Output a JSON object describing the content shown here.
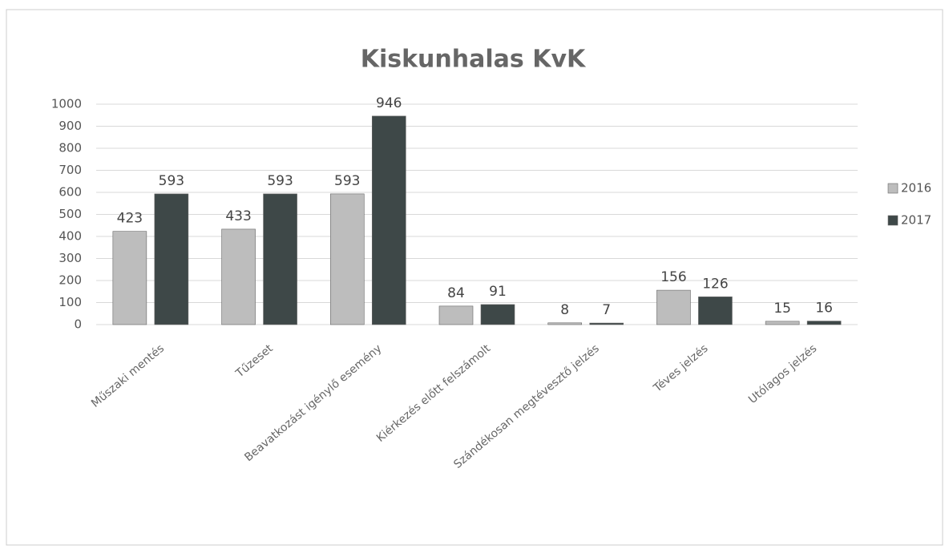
{
  "chart_data": {
    "type": "bar",
    "title": "Kiskunhalas KvK",
    "categories": [
      "Műszaki mentés",
      "Tűzeset",
      "Beavatkozást igénylő esemény",
      "Kiérkezés előtt felszámolt",
      "Szándékosan megtévesztő jelzés",
      "Téves jelzés",
      "Utólagos jelzés"
    ],
    "series": [
      {
        "name": "2016",
        "color": "#bdbdbd",
        "values": [
          423,
          433,
          593,
          84,
          8,
          156,
          15
        ]
      },
      {
        "name": "2017",
        "color": "#3e4848",
        "values": [
          593,
          593,
          946,
          91,
          7,
          126,
          16
        ]
      }
    ],
    "ylim": [
      0,
      1000
    ],
    "yticks": [
      0,
      100,
      200,
      300,
      400,
      500,
      600,
      700,
      800,
      900,
      1000
    ],
    "grid": true,
    "legend": "right"
  }
}
